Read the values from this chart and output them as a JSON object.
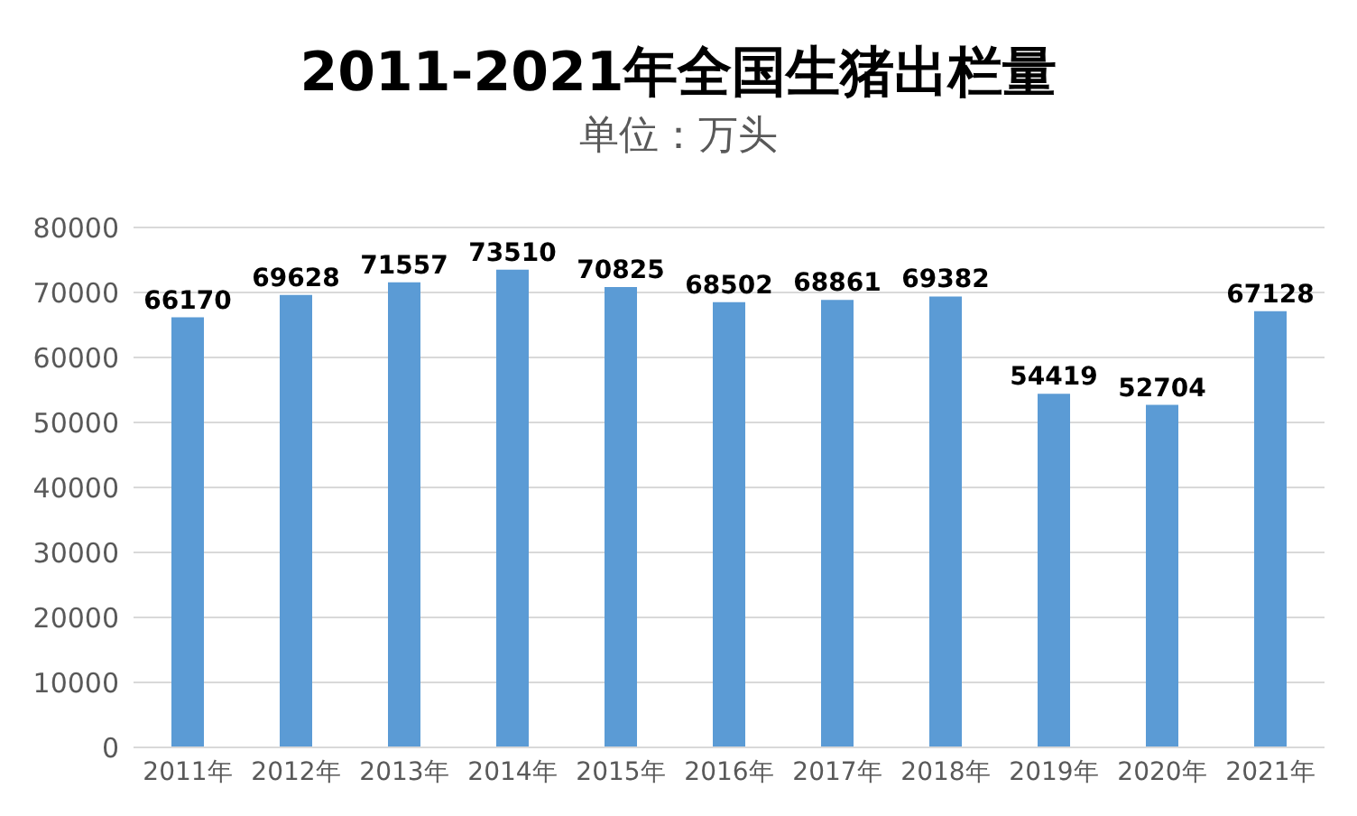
{
  "chart_data": {
    "type": "bar",
    "title": "2011-2021年全国生猪出栏量",
    "subtitle": "单位：万头",
    "categories": [
      "2011年",
      "2012年",
      "2013年",
      "2014年",
      "2015年",
      "2016年",
      "2017年",
      "2018年",
      "2019年",
      "2020年",
      "2021年"
    ],
    "values": [
      66170,
      69628,
      71557,
      73510,
      70825,
      68502,
      68861,
      69382,
      54419,
      52704,
      67128
    ],
    "color": "#5b9bd5",
    "ylim": [
      0,
      80000
    ],
    "yticks": [
      0,
      10000,
      20000,
      30000,
      40000,
      50000,
      60000,
      70000,
      80000
    ],
    "grid": "y",
    "data_labels": true
  }
}
